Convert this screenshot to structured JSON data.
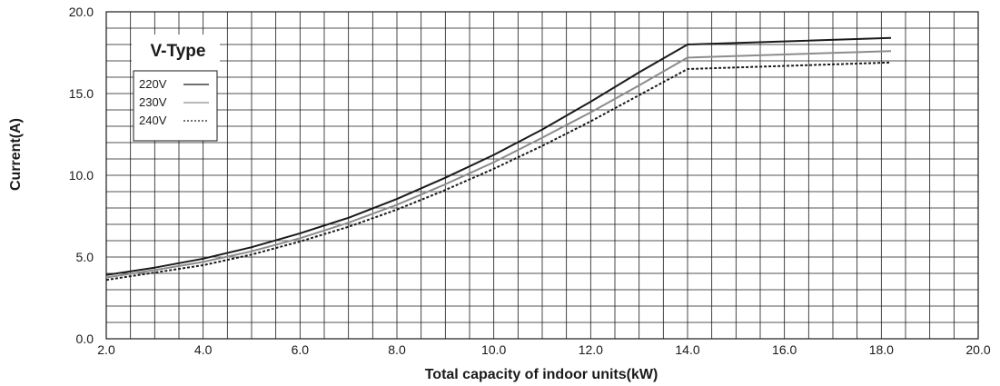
{
  "chart_data": {
    "type": "line",
    "title": "",
    "xlabel": "Total capacity of indoor units(kW)",
    "ylabel": "Current(A)",
    "xlim": [
      2.0,
      20.0
    ],
    "ylim": [
      0.0,
      20.0
    ],
    "x_ticks": [
      "2.0",
      "4.0",
      "6.0",
      "8.0",
      "10.0",
      "12.0",
      "14.0",
      "16.0",
      "18.0",
      "20.0"
    ],
    "y_ticks": [
      "0.0",
      "5.0",
      "10.0",
      "15.0",
      "20.0"
    ],
    "x_tick_values": [
      2,
      4,
      6,
      8,
      10,
      12,
      14,
      16,
      18,
      20
    ],
    "y_tick_values": [
      0,
      5,
      10,
      15,
      20
    ],
    "grid": true,
    "legend": {
      "title": "V-Type",
      "position": "top-left"
    },
    "series": [
      {
        "name": "220V",
        "color": "#1a1a1a",
        "dash": "solid",
        "points": [
          [
            2.0,
            3.9
          ],
          [
            3.0,
            4.35
          ],
          [
            4.0,
            4.9
          ],
          [
            5.0,
            5.6
          ],
          [
            6.0,
            6.45
          ],
          [
            7.0,
            7.4
          ],
          [
            8.0,
            8.55
          ],
          [
            9.0,
            9.85
          ],
          [
            10.0,
            11.25
          ],
          [
            11.0,
            12.8
          ],
          [
            12.0,
            14.5
          ],
          [
            13.0,
            16.3
          ],
          [
            14.0,
            18.0
          ],
          [
            18.2,
            18.4
          ]
        ]
      },
      {
        "name": "230V",
        "color": "#8c8c8c",
        "dash": "solid",
        "points": [
          [
            2.0,
            3.75
          ],
          [
            3.0,
            4.2
          ],
          [
            4.0,
            4.7
          ],
          [
            5.0,
            5.35
          ],
          [
            6.0,
            6.15
          ],
          [
            7.0,
            7.1
          ],
          [
            8.0,
            8.2
          ],
          [
            9.0,
            9.45
          ],
          [
            10.0,
            10.8
          ],
          [
            11.0,
            12.3
          ],
          [
            12.0,
            13.85
          ],
          [
            13.0,
            15.5
          ],
          [
            14.0,
            17.2
          ],
          [
            18.2,
            17.6
          ]
        ]
      },
      {
        "name": "240V",
        "color": "#1a1a1a",
        "dash": "dotted",
        "points": [
          [
            2.0,
            3.6
          ],
          [
            3.0,
            4.05
          ],
          [
            4.0,
            4.5
          ],
          [
            5.0,
            5.15
          ],
          [
            6.0,
            5.95
          ],
          [
            7.0,
            6.85
          ],
          [
            8.0,
            7.9
          ],
          [
            9.0,
            9.1
          ],
          [
            10.0,
            10.4
          ],
          [
            11.0,
            11.8
          ],
          [
            12.0,
            13.3
          ],
          [
            13.0,
            14.9
          ],
          [
            14.0,
            16.5
          ],
          [
            18.2,
            16.9
          ]
        ]
      }
    ]
  }
}
